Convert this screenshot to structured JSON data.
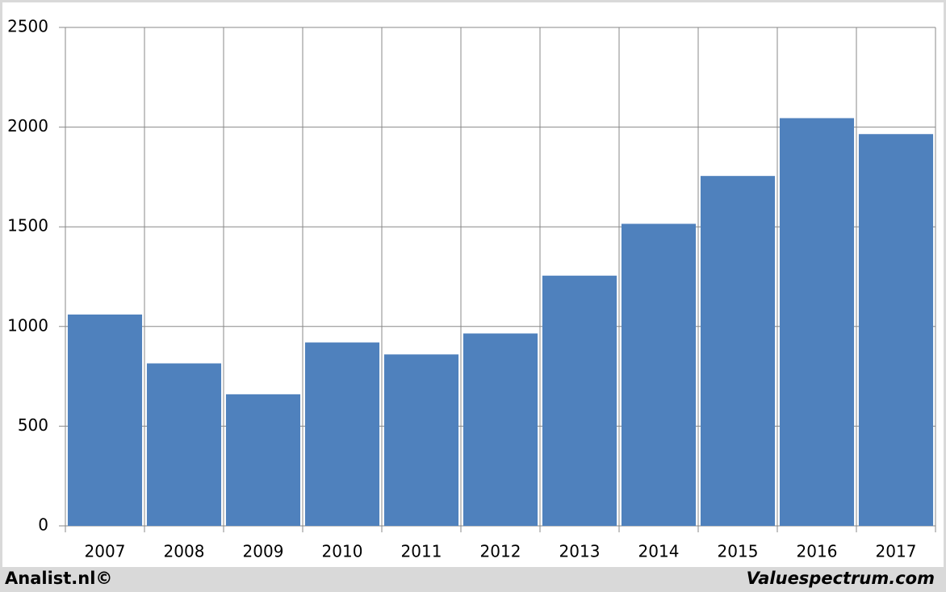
{
  "chart_data": {
    "type": "bar",
    "categories": [
      "2007",
      "2008",
      "2009",
      "2010",
      "2011",
      "2012",
      "2013",
      "2014",
      "2015",
      "2016",
      "2017"
    ],
    "values": [
      1060,
      815,
      660,
      920,
      860,
      965,
      1255,
      1515,
      1755,
      2045,
      1965
    ],
    "color": "#4f81bd",
    "ylim": [
      0,
      2500
    ],
    "yticks": [
      0,
      500,
      1000,
      1500,
      2000,
      2500
    ],
    "grid": true,
    "footer_left": "Analist.nl©",
    "footer_right": "Valuespectrum.com"
  }
}
